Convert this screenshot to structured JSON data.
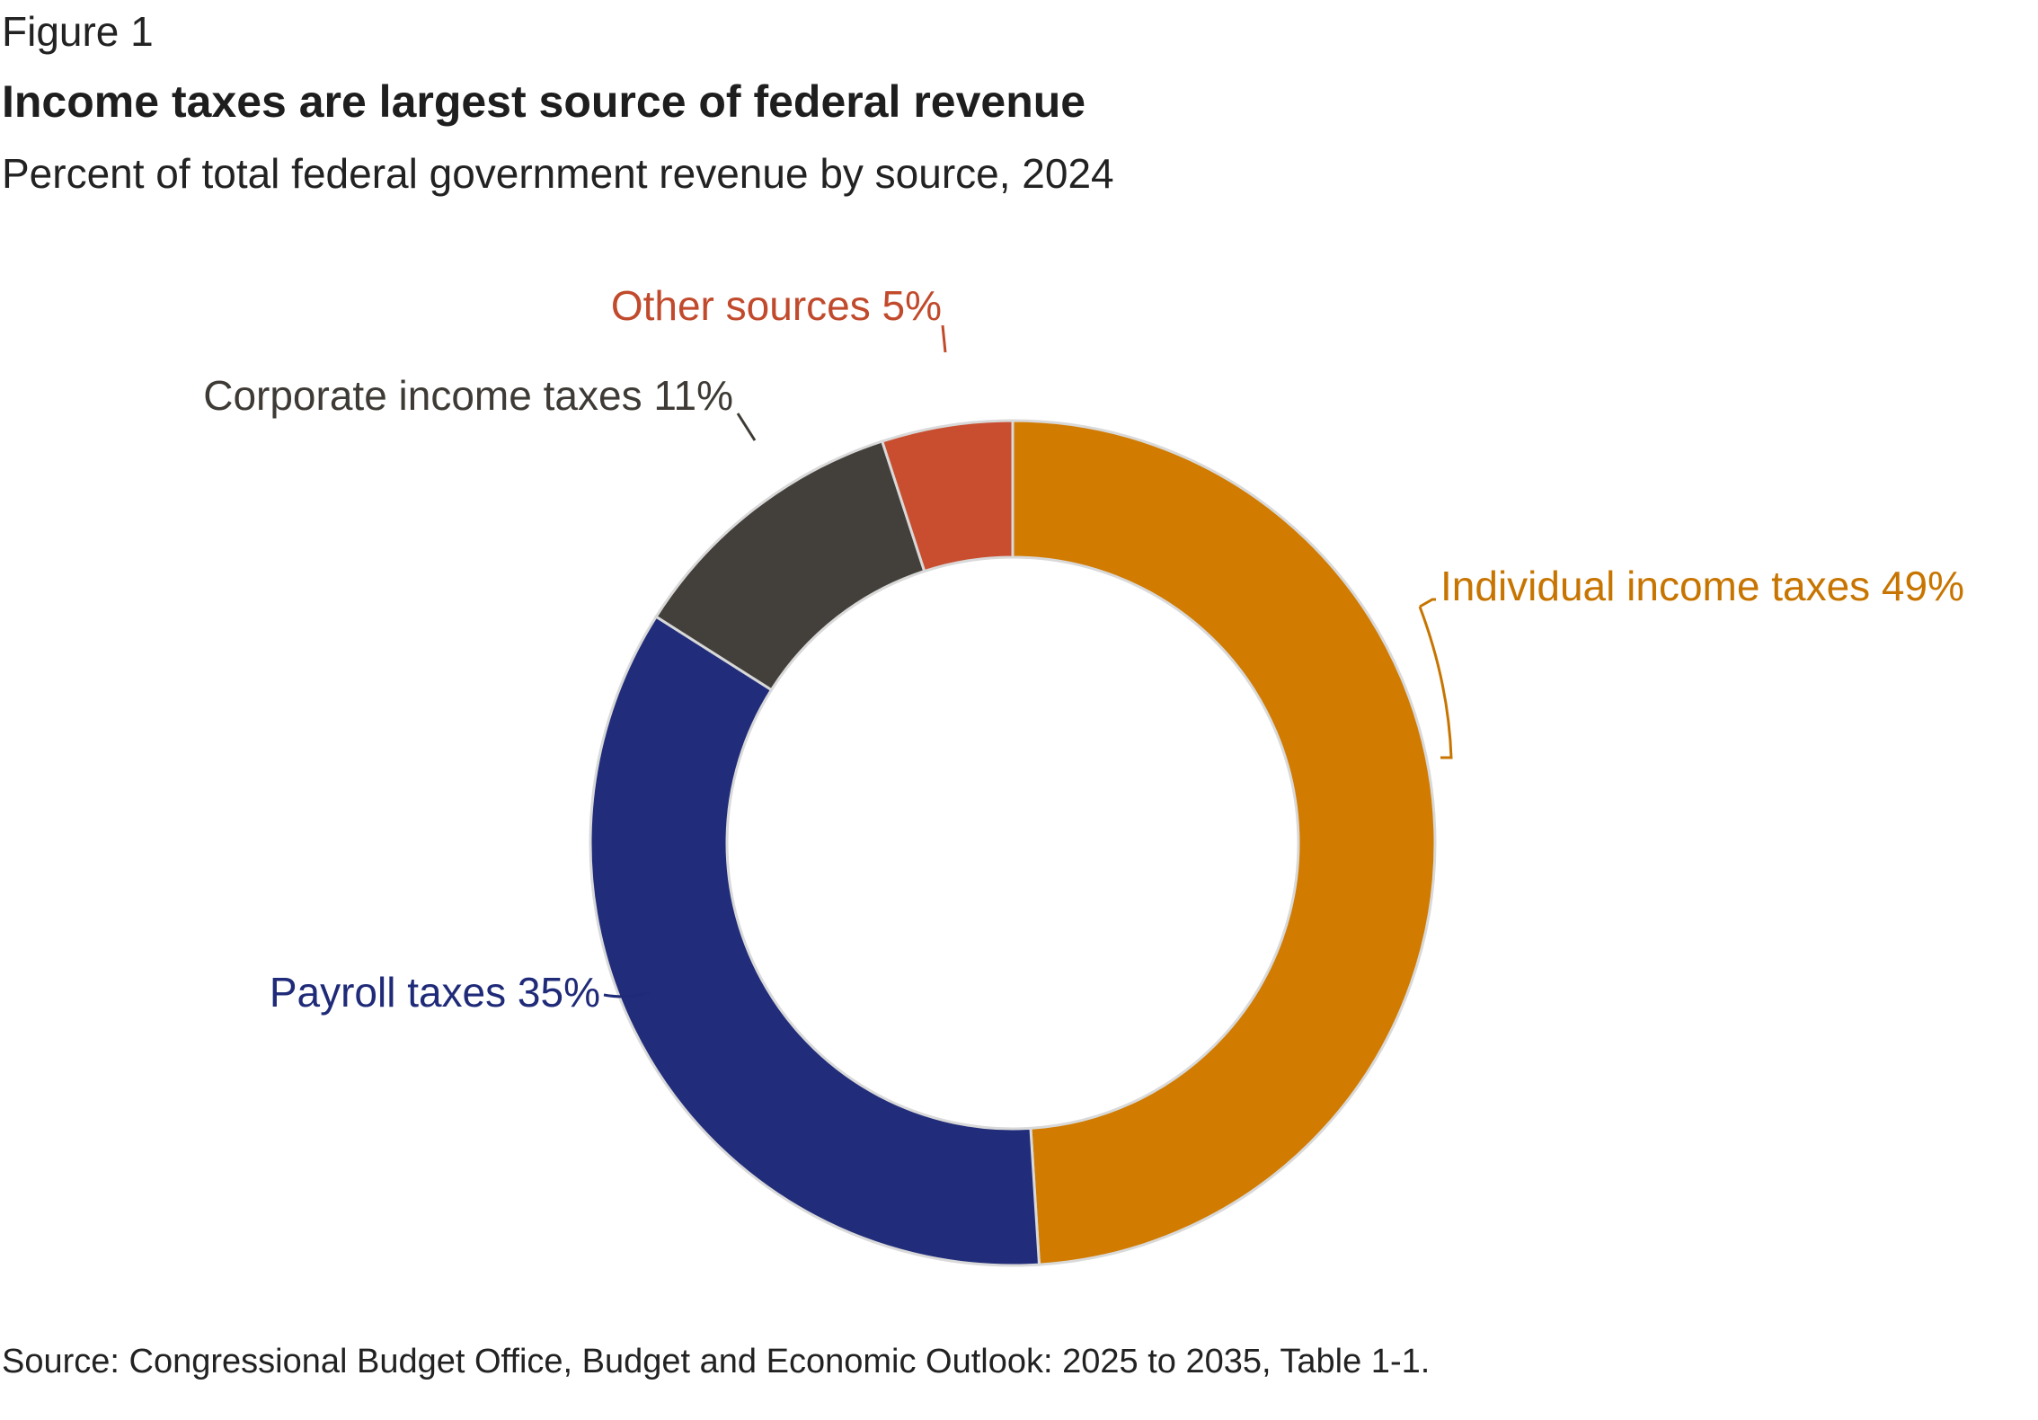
{
  "figure": {
    "label": "Figure 1",
    "title": "Income taxes are largest source of federal revenue",
    "subtitle": "Percent of total federal government revenue by source, 2024",
    "source": "Source: Congressional Budget Office, Budget and Economic Outlook: 2025 to 2035, Table 1-1."
  },
  "chart_data": {
    "type": "pie",
    "variant": "donut",
    "title": "Income taxes are largest source of federal revenue",
    "subtitle": "Percent of total federal government revenue by source, 2024",
    "unit": "%",
    "categories": [
      "Individual income taxes",
      "Payroll taxes",
      "Corporate income taxes",
      "Other sources"
    ],
    "values": [
      49,
      35,
      11,
      5
    ],
    "labels": [
      "Individual income taxes 49%",
      "Payroll taxes 35%",
      "Corporate income taxes 11%",
      "Other sources 5%"
    ],
    "colors": [
      "#D17B00",
      "#212D7A",
      "#433F3A",
      "#C84E2F"
    ],
    "label_colors": [
      "#C77500",
      "#1F2A78",
      "#3E3A35",
      "#C14A2C"
    ],
    "start": "12 o'clock, clockwise",
    "legend": "none (direct labels)"
  }
}
